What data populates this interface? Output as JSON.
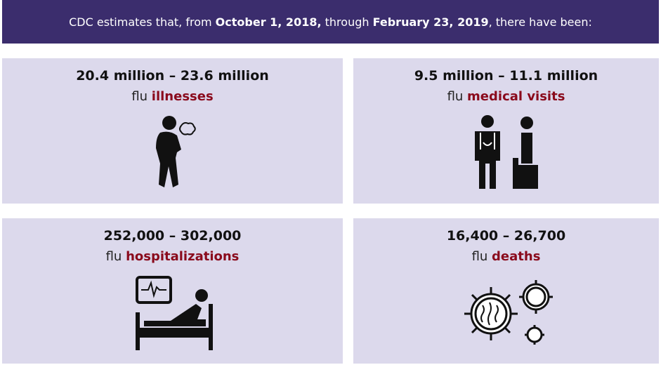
{
  "header": {
    "parts": [
      "CDC estimates that, from ",
      "October 1, 2018,",
      " through ",
      "February 23, 2019",
      ", there have been:"
    ]
  },
  "cards": [
    {
      "range": "20.4 million – 23.6 million",
      "prefix": "flu",
      "highlight": "illnesses"
    },
    {
      "range": "9.5 million – 11.1 million",
      "prefix": "flu",
      "highlight": "medical visits"
    },
    {
      "range": "252,000 – 302,000",
      "prefix": "flu",
      "highlight": "hospitalizations"
    },
    {
      "range": "16,400 – 26,700",
      "prefix": "flu",
      "highlight": "deaths"
    }
  ]
}
